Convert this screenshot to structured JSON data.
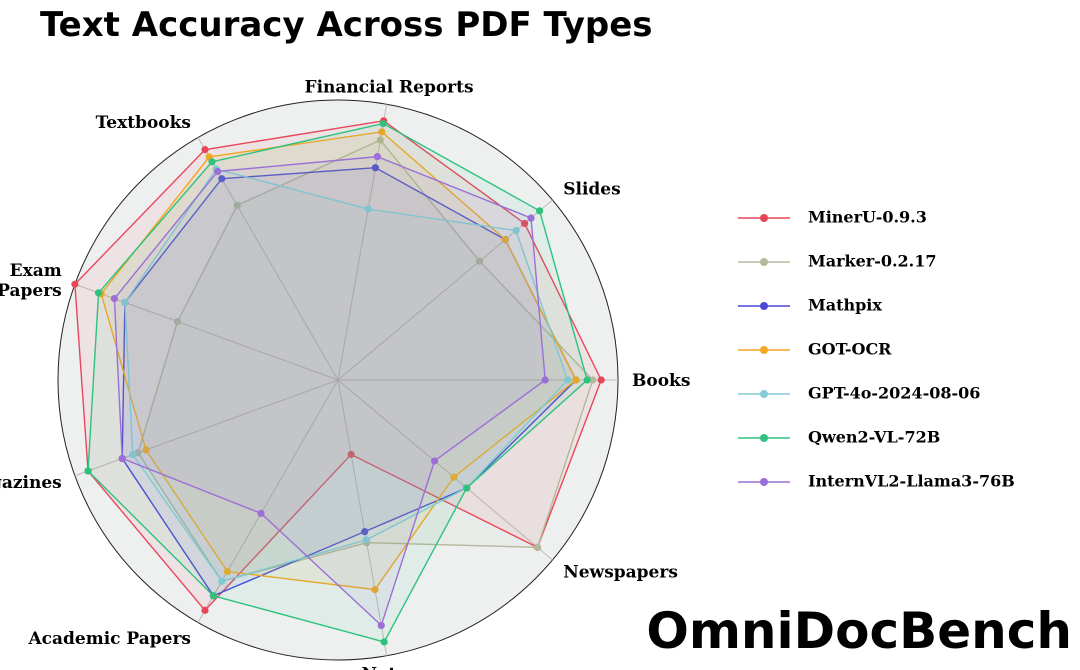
{
  "chart_data": {
    "type": "radar",
    "title": "Text Accuracy Across PDF Types",
    "watermark": "OmniDocBench",
    "categories": [
      "Books",
      "Slides",
      "Financial Reports",
      "Textbooks",
      "Exam Papers",
      "Magazines",
      "Academic Papers",
      "Notes",
      "Newspapers"
    ],
    "rlim": [
      0,
      1
    ],
    "legend": "right",
    "series": [
      {
        "name": "MinerU-0.9.3",
        "color": "#e8475a",
        "values": [
          0.94,
          0.87,
          0.94,
          0.95,
          1.0,
          0.95,
          0.95,
          0.27,
          0.93
        ]
      },
      {
        "name": "Marker-0.2.17",
        "color": "#b5b89a",
        "values": [
          0.91,
          0.66,
          0.87,
          0.72,
          0.61,
          0.76,
          0.83,
          0.59,
          0.93
        ]
      },
      {
        "name": "Mathpix",
        "color": "#4a4ad6",
        "values": [
          0.85,
          0.78,
          0.77,
          0.83,
          0.81,
          0.82,
          0.89,
          0.55,
          0.6
        ]
      },
      {
        "name": "GOT-OCR",
        "color": "#f5a623",
        "values": [
          0.85,
          0.78,
          0.9,
          0.92,
          0.9,
          0.73,
          0.79,
          0.76,
          0.54
        ]
      },
      {
        "name": "GPT-4o-2024-08-06",
        "color": "#85ccd6",
        "values": [
          0.82,
          0.83,
          0.62,
          0.87,
          0.81,
          0.78,
          0.83,
          0.58,
          0.6
        ]
      },
      {
        "name": "Qwen2-VL-72B",
        "color": "#2ec27e",
        "values": [
          0.89,
          0.94,
          0.93,
          0.9,
          0.91,
          0.95,
          0.89,
          0.95,
          0.6
        ]
      },
      {
        "name": "InternVL2-Llama3-76B",
        "color": "#9b6fd6",
        "values": [
          0.74,
          0.9,
          0.81,
          0.86,
          0.85,
          0.82,
          0.55,
          0.89,
          0.45
        ]
      }
    ]
  }
}
